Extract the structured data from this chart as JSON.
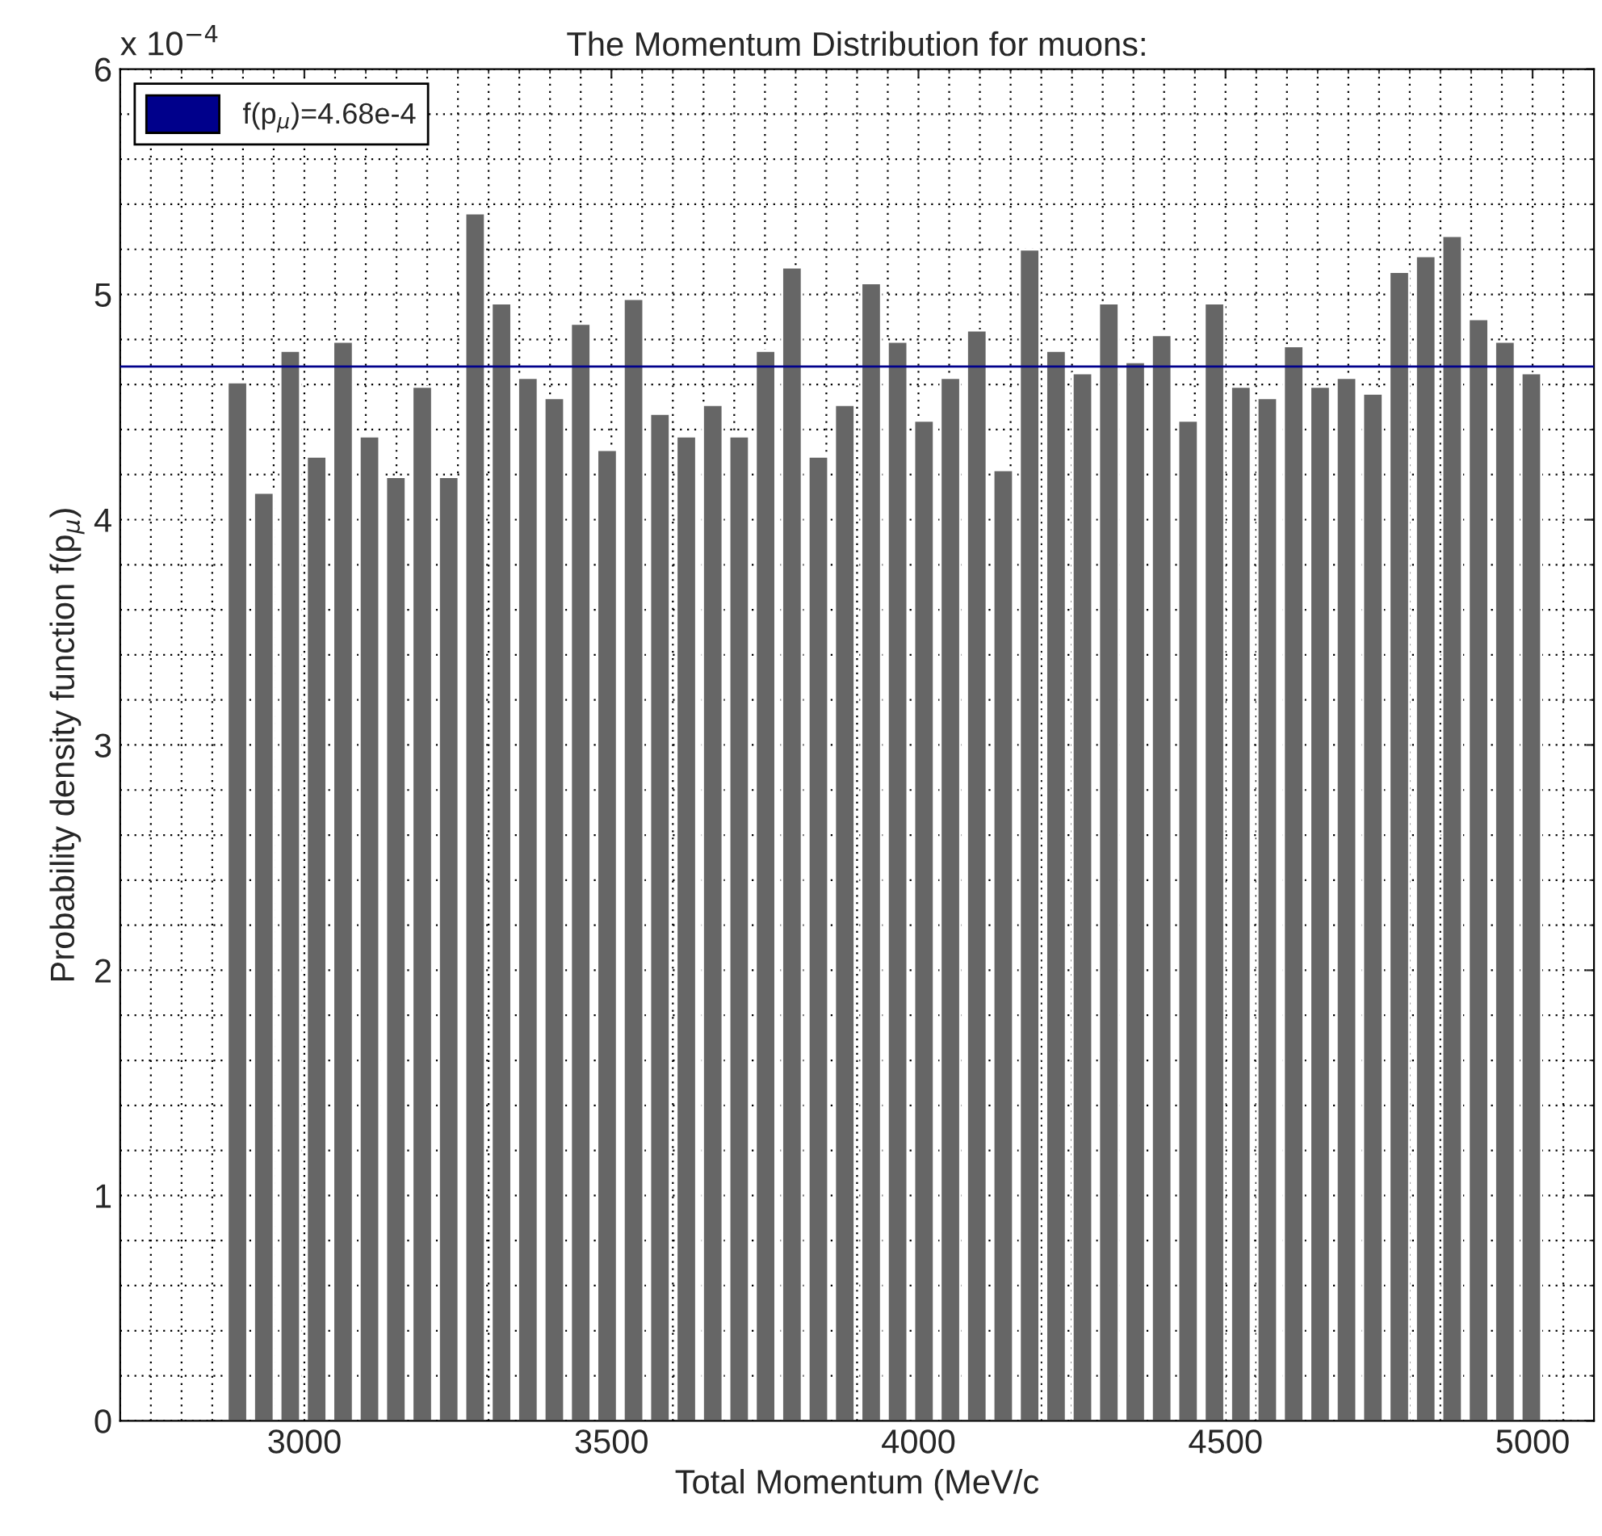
{
  "chart_data": {
    "type": "bar",
    "title": "The Momentum Distribution for muons:",
    "xlabel": "Total Momentum (MeV/c",
    "ylabel": "Probability density function f(p$_{μ}$)",
    "x": [
      2891,
      2934,
      2977,
      3020,
      3063,
      3106,
      3149,
      3192,
      3235,
      3278,
      3321,
      3364,
      3407,
      3450,
      3493,
      3536,
      3579,
      3622,
      3665,
      3708,
      3751,
      3794,
      3837,
      3880,
      3923,
      3966,
      4009,
      4052,
      4095,
      4138,
      4181,
      4224,
      4267,
      4310,
      4353,
      4396,
      4439,
      4482,
      4525,
      4568,
      4611,
      4654,
      4697,
      4740,
      4783,
      4826,
      4869,
      4912,
      4955,
      4998
    ],
    "series": [
      {
        "color": "#666666",
        "values": [
          4.61,
          4.12,
          4.75,
          4.28,
          4.79,
          4.37,
          4.19,
          4.59,
          4.19,
          5.36,
          4.96,
          4.63,
          4.54,
          4.87,
          4.31,
          4.98,
          4.47,
          4.37,
          4.51,
          4.37,
          4.75,
          5.12,
          4.28,
          4.51,
          5.05,
          4.79,
          4.44,
          4.63,
          4.84,
          4.22,
          5.2,
          4.75,
          4.65,
          4.96,
          4.7,
          4.82,
          4.44,
          4.96,
          4.59,
          4.54,
          4.77,
          4.59,
          4.63,
          4.56,
          5.1,
          5.17,
          5.26,
          4.89,
          4.79,
          4.65
        ]
      }
    ],
    "xlim": [
      2700,
      5100
    ],
    "xticks": [
      3000,
      3500,
      4000,
      4500,
      5000
    ],
    "ylim": [
      0,
      6
    ],
    "yticks": [
      0,
      1,
      2,
      3,
      4,
      5,
      6
    ],
    "ref_lines": [
      {
        "axis": "y",
        "value": 4.68,
        "label": "f(p$_{μ}$)=4.68e-4",
        "color": "#00008b"
      }
    ],
    "annotations": [
      "x 10$^{−4}$"
    ],
    "grid": true,
    "legend": "top left"
  }
}
